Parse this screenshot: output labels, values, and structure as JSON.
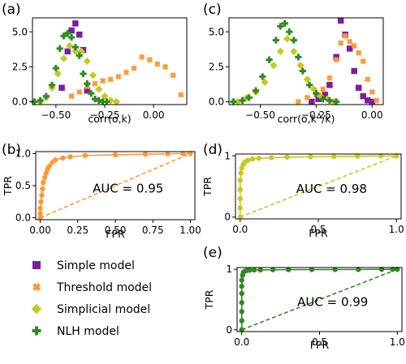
{
  "colors": {
    "simple": "#7b1fa2",
    "threshold": "#ff9933",
    "simplicial": "#c8c820",
    "nlh": "#2e8b22"
  },
  "legend": [
    {
      "label": "Simple model",
      "marker": "square",
      "color": "#7b1fa2"
    },
    {
      "label": "Threshold model",
      "marker": "x",
      "color": "#ff9933"
    },
    {
      "label": "Simplicial model",
      "marker": "diamond",
      "color": "#c8c820"
    },
    {
      "label": "NLH model",
      "marker": "plus",
      "color": "#2e8b22"
    }
  ],
  "chart_data": [
    {
      "panel": "(a)",
      "type": "scatter",
      "xlabel": "corr(o,k)",
      "ylabel": "",
      "xlim": [
        -0.62,
        0.17
      ],
      "ylim": [
        -0.2,
        6.0
      ],
      "xticks": [
        -0.5,
        -0.25,
        0.0
      ],
      "xtick_labels": [
        "−0.50",
        "−0.25",
        "0.00"
      ],
      "yticks": [
        0.0,
        2.5,
        5.0
      ],
      "ytick_labels": [
        "0.0",
        "2.5",
        "5.0"
      ],
      "series": [
        {
          "key": "simple",
          "marker": "square",
          "x": [
            -0.47,
            -0.44,
            -0.42,
            -0.4,
            -0.38,
            -0.36,
            -0.34
          ],
          "y": [
            1.0,
            3.6,
            5.1,
            5.6,
            4.8,
            3.7,
            0.8
          ]
        },
        {
          "key": "threshold",
          "marker": "x",
          "x": [
            -0.42,
            -0.38,
            -0.34,
            -0.3,
            -0.26,
            -0.22,
            -0.18,
            -0.14,
            -0.1,
            -0.06,
            -0.02,
            0.02,
            0.06,
            0.1,
            0.14
          ],
          "y": [
            0.4,
            0.7,
            1.1,
            1.3,
            1.5,
            1.6,
            1.8,
            2.1,
            2.4,
            3.2,
            3.0,
            2.7,
            2.5,
            1.9,
            0.5
          ]
        },
        {
          "key": "simplicial",
          "marker": "diamond",
          "x": [
            -0.58,
            -0.55,
            -0.52,
            -0.49,
            -0.46,
            -0.43,
            -0.4,
            -0.37,
            -0.34,
            -0.31,
            -0.28,
            -0.25,
            -0.22,
            -0.19
          ],
          "y": [
            0.0,
            0.3,
            1.0,
            2.0,
            3.1,
            4.0,
            3.6,
            3.6,
            2.9,
            1.9,
            0.9,
            0.4,
            0.1,
            0.0
          ]
        },
        {
          "key": "nlh",
          "marker": "plus",
          "x": [
            -0.61,
            -0.58,
            -0.55,
            -0.52,
            -0.5,
            -0.48,
            -0.46,
            -0.44,
            -0.42,
            -0.4,
            -0.38,
            -0.36,
            -0.34,
            -0.32,
            -0.3,
            -0.28,
            -0.26,
            -0.24
          ],
          "y": [
            0.0,
            0.1,
            0.4,
            1.2,
            2.4,
            3.8,
            4.7,
            4.9,
            4.6,
            3.9,
            3.3,
            2.0,
            1.3,
            0.6,
            0.2,
            0.1,
            0.0,
            0.0
          ]
        }
      ]
    },
    {
      "panel": "(c)",
      "type": "scatter",
      "xlabel": "corr(o,k",
      "xlabel_sup": "Δ",
      "xlabel_end": "/k)",
      "ylabel": "",
      "xlim": [
        -0.64,
        0.05
      ],
      "ylim": [
        -0.2,
        6.0
      ],
      "xticks": [
        -0.5,
        -0.25,
        0.0
      ],
      "xtick_labels": [
        "−0.50",
        "−0.25",
        "0.00"
      ],
      "yticks": [
        0.0,
        2.5,
        5.0
      ],
      "ytick_labels": [
        "0.0",
        "2.5",
        "5.0"
      ],
      "series": [
        {
          "key": "simple",
          "marker": "square",
          "x": [
            -0.27,
            -0.24,
            -0.21,
            -0.19,
            -0.16,
            -0.14,
            -0.12,
            -0.1,
            -0.08,
            -0.06,
            -0.04,
            -0.02,
            0.0
          ],
          "y": [
            0.0,
            0.2,
            0.5,
            1.2,
            3.2,
            5.8,
            4.8,
            3.8,
            2.2,
            1.0,
            0.4,
            0.1,
            0.0
          ]
        },
        {
          "key": "threshold",
          "marker": "x",
          "x": [
            -0.33,
            -0.29,
            -0.25,
            -0.22,
            -0.19,
            -0.16,
            -0.14,
            -0.12,
            -0.1,
            -0.08,
            -0.06,
            -0.04,
            -0.02,
            0.0,
            0.02
          ],
          "y": [
            0.0,
            0.3,
            0.5,
            0.9,
            1.7,
            3.0,
            4.2,
            4.7,
            4.3,
            4.0,
            3.5,
            2.9,
            1.6,
            0.7,
            0.1
          ]
        },
        {
          "key": "simplicial",
          "marker": "diamond",
          "x": [
            -0.6,
            -0.56,
            -0.52,
            -0.48,
            -0.44,
            -0.41,
            -0.38,
            -0.35,
            -0.32,
            -0.29,
            -0.26,
            -0.23,
            -0.2,
            -0.17
          ],
          "y": [
            0.0,
            0.3,
            0.7,
            1.4,
            2.6,
            3.6,
            4.5,
            3.6,
            2.6,
            1.6,
            0.9,
            0.4,
            0.2,
            0.0
          ]
        },
        {
          "key": "nlh",
          "marker": "plus",
          "x": [
            -0.62,
            -0.58,
            -0.55,
            -0.52,
            -0.49,
            -0.46,
            -0.43,
            -0.41,
            -0.39,
            -0.37,
            -0.35,
            -0.33,
            -0.31,
            -0.28,
            -0.25,
            -0.22,
            -0.19,
            -0.16
          ],
          "y": [
            0.0,
            0.1,
            0.3,
            0.8,
            1.8,
            3.0,
            4.4,
            5.4,
            5.6,
            5.0,
            4.4,
            3.2,
            2.2,
            1.2,
            0.6,
            0.2,
            0.1,
            0.0
          ]
        }
      ]
    },
    {
      "panel": "(b)",
      "type": "line",
      "xlabel": "FPR",
      "ylabel": "TPR",
      "auc_label": "AUC = 0.95",
      "xlim": [
        -0.03,
        1.03
      ],
      "ylim": [
        -0.03,
        1.03
      ],
      "xticks": [
        0.0,
        0.25,
        0.5,
        0.75,
        1.0
      ],
      "xtick_labels": [
        "0.00",
        "0.25",
        "0.50",
        "0.75",
        "1.00"
      ],
      "yticks": [
        0.0,
        0.5,
        1.0
      ],
      "ytick_labels": [
        "0.0",
        "0.5",
        "1.0"
      ],
      "color": "#ff9933",
      "roc": {
        "x": [
          0.0,
          0.0,
          0.0,
          0.005,
          0.01,
          0.015,
          0.02,
          0.03,
          0.04,
          0.05,
          0.06,
          0.08,
          0.1,
          0.15,
          0.2,
          0.3,
          0.5,
          0.7,
          0.85,
          0.95,
          1.0
        ],
        "y": [
          0.0,
          0.07,
          0.15,
          0.25,
          0.35,
          0.45,
          0.55,
          0.63,
          0.7,
          0.76,
          0.8,
          0.86,
          0.9,
          0.93,
          0.95,
          0.97,
          0.98,
          0.99,
          0.995,
          1.0,
          1.0
        ]
      },
      "diagonal": [
        [
          0.0,
          0.0
        ],
        [
          1.0,
          1.0
        ]
      ]
    },
    {
      "panel": "(d)",
      "type": "line",
      "xlabel": "FPR",
      "ylabel": "TPR",
      "auc_label": "AUC = 0.98",
      "xlim": [
        -0.03,
        1.03
      ],
      "ylim": [
        -0.03,
        1.03
      ],
      "xticks": [
        0.0,
        0.5,
        1.0
      ],
      "xtick_labels": [
        "0.0",
        "0.5",
        "1.0"
      ],
      "yticks": [
        0.0,
        1.0
      ],
      "ytick_labels": [
        "0",
        "1"
      ],
      "color": "#c8c820",
      "roc": {
        "x": [
          0.0,
          0.0,
          0.0,
          0.0,
          0.0,
          0.005,
          0.01,
          0.02,
          0.03,
          0.05,
          0.08,
          0.12,
          0.2,
          0.3,
          0.45,
          0.6,
          0.75,
          0.9,
          1.0
        ],
        "y": [
          0.0,
          0.15,
          0.3,
          0.45,
          0.6,
          0.72,
          0.8,
          0.86,
          0.9,
          0.93,
          0.95,
          0.96,
          0.97,
          0.98,
          0.985,
          0.99,
          0.995,
          1.0,
          1.0
        ]
      },
      "diagonal": [
        [
          0.0,
          0.0
        ],
        [
          1.0,
          1.0
        ]
      ]
    },
    {
      "panel": "(e)",
      "type": "line",
      "xlabel": "FPR",
      "ylabel": "TPR",
      "auc_label": "AUC = 0.99",
      "xlim": [
        -0.03,
        1.03
      ],
      "ylim": [
        -0.03,
        1.03
      ],
      "xticks": [
        0.0,
        0.5,
        1.0
      ],
      "xtick_labels": [
        "0.0",
        "0.5",
        "1.0"
      ],
      "yticks": [
        0.0,
        1.0
      ],
      "ytick_labels": [
        "0",
        "1"
      ],
      "color": "#2e8b22",
      "roc": {
        "x": [
          0.0,
          0.0,
          0.0,
          0.0,
          0.0,
          0.0,
          0.0,
          0.005,
          0.01,
          0.02,
          0.03,
          0.05,
          0.08,
          0.12,
          0.2,
          0.3,
          0.45,
          0.6,
          0.75,
          0.9,
          0.97,
          1.0
        ],
        "y": [
          0.0,
          0.15,
          0.3,
          0.45,
          0.6,
          0.72,
          0.82,
          0.9,
          0.95,
          0.97,
          0.98,
          0.985,
          0.99,
          0.99,
          0.993,
          0.995,
          0.996,
          0.997,
          0.998,
          1.0,
          1.0,
          1.0
        ]
      },
      "diagonal": [
        [
          0.0,
          0.0
        ],
        [
          1.0,
          1.0
        ]
      ]
    }
  ]
}
